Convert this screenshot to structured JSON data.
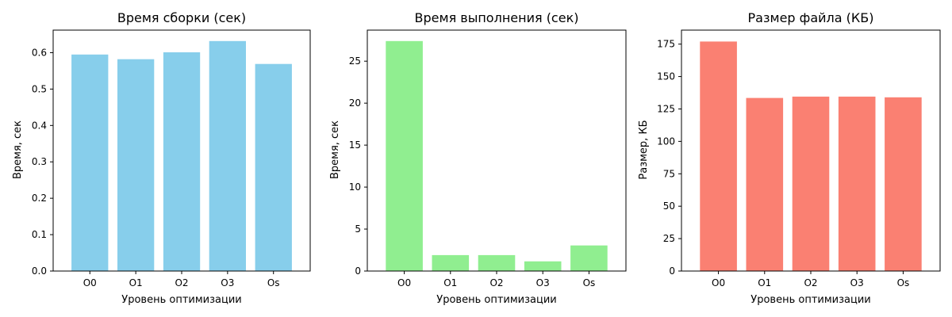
{
  "chart_data": [
    {
      "type": "bar",
      "title": "Время сборки (сек)",
      "xlabel": "Уровень оптимизации",
      "ylabel": "Время, сек",
      "categories": [
        "O0",
        "O1",
        "O2",
        "O3",
        "Os"
      ],
      "values": [
        0.595,
        0.582,
        0.601,
        0.632,
        0.569
      ],
      "ylim": [
        0,
        0.662
      ],
      "yticks": [
        0.0,
        0.1,
        0.2,
        0.3,
        0.4,
        0.5,
        0.6
      ],
      "ytick_labels": [
        "0.0",
        "0.1",
        "0.2",
        "0.3",
        "0.4",
        "0.5",
        "0.6"
      ],
      "color": "#87ceeb",
      "grid": false
    },
    {
      "type": "bar",
      "title": "Время выполнения (сек)",
      "xlabel": "Уровень оптимизации",
      "ylabel": "Время, сек",
      "categories": [
        "O0",
        "O1",
        "O2",
        "O3",
        "Os"
      ],
      "values": [
        27.4,
        1.9,
        1.9,
        1.15,
        3.05
      ],
      "ylim": [
        0,
        28.7
      ],
      "yticks": [
        0,
        5,
        10,
        15,
        20,
        25
      ],
      "ytick_labels": [
        "0",
        "5",
        "10",
        "15",
        "20",
        "25"
      ],
      "color": "#90ee90",
      "grid": false
    },
    {
      "type": "bar",
      "title": "Размер файла (КБ)",
      "xlabel": "Уровень оптимизации",
      "ylabel": "Размер, КБ",
      "categories": [
        "O0",
        "O1",
        "O2",
        "O3",
        "Os"
      ],
      "values": [
        177,
        133.5,
        134.5,
        134.5,
        134
      ],
      "ylim": [
        0,
        185.8
      ],
      "yticks": [
        0,
        25,
        50,
        75,
        100,
        125,
        150,
        175
      ],
      "ytick_labels": [
        "0",
        "25",
        "50",
        "75",
        "100",
        "125",
        "150",
        "175"
      ],
      "color": "#fa8072",
      "grid": false
    }
  ]
}
